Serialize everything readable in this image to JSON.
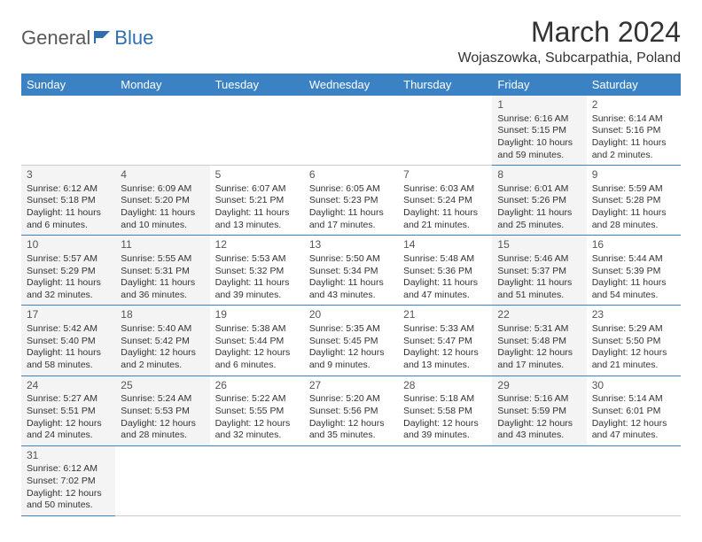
{
  "logo": {
    "word1": "General",
    "word2": "Blue"
  },
  "title": "March 2024",
  "location": "Wojaszowka, Subcarpathia, Poland",
  "colors": {
    "header_bg": "#3b82c4",
    "header_text": "#ffffff",
    "shaded_bg": "#f4f4f4",
    "row_border": "#3b82c4",
    "logo_gray": "#58595b",
    "logo_blue": "#2f6fae"
  },
  "weekdays": [
    "Sunday",
    "Monday",
    "Tuesday",
    "Wednesday",
    "Thursday",
    "Friday",
    "Saturday"
  ],
  "weeks": [
    [
      {
        "empty": true
      },
      {
        "empty": true
      },
      {
        "empty": true
      },
      {
        "empty": true
      },
      {
        "empty": true
      },
      {
        "num": "1",
        "shaded": true,
        "sunrise": "Sunrise: 6:16 AM",
        "sunset": "Sunset: 5:15 PM",
        "day1": "Daylight: 10 hours",
        "day2": "and 59 minutes."
      },
      {
        "num": "2",
        "shaded": false,
        "sunrise": "Sunrise: 6:14 AM",
        "sunset": "Sunset: 5:16 PM",
        "day1": "Daylight: 11 hours",
        "day2": "and 2 minutes."
      }
    ],
    [
      {
        "num": "3",
        "shaded": true,
        "sunrise": "Sunrise: 6:12 AM",
        "sunset": "Sunset: 5:18 PM",
        "day1": "Daylight: 11 hours",
        "day2": "and 6 minutes."
      },
      {
        "num": "4",
        "shaded": true,
        "sunrise": "Sunrise: 6:09 AM",
        "sunset": "Sunset: 5:20 PM",
        "day1": "Daylight: 11 hours",
        "day2": "and 10 minutes."
      },
      {
        "num": "5",
        "shaded": false,
        "sunrise": "Sunrise: 6:07 AM",
        "sunset": "Sunset: 5:21 PM",
        "day1": "Daylight: 11 hours",
        "day2": "and 13 minutes."
      },
      {
        "num": "6",
        "shaded": false,
        "sunrise": "Sunrise: 6:05 AM",
        "sunset": "Sunset: 5:23 PM",
        "day1": "Daylight: 11 hours",
        "day2": "and 17 minutes."
      },
      {
        "num": "7",
        "shaded": false,
        "sunrise": "Sunrise: 6:03 AM",
        "sunset": "Sunset: 5:24 PM",
        "day1": "Daylight: 11 hours",
        "day2": "and 21 minutes."
      },
      {
        "num": "8",
        "shaded": true,
        "sunrise": "Sunrise: 6:01 AM",
        "sunset": "Sunset: 5:26 PM",
        "day1": "Daylight: 11 hours",
        "day2": "and 25 minutes."
      },
      {
        "num": "9",
        "shaded": false,
        "sunrise": "Sunrise: 5:59 AM",
        "sunset": "Sunset: 5:28 PM",
        "day1": "Daylight: 11 hours",
        "day2": "and 28 minutes."
      }
    ],
    [
      {
        "num": "10",
        "shaded": true,
        "sunrise": "Sunrise: 5:57 AM",
        "sunset": "Sunset: 5:29 PM",
        "day1": "Daylight: 11 hours",
        "day2": "and 32 minutes."
      },
      {
        "num": "11",
        "shaded": true,
        "sunrise": "Sunrise: 5:55 AM",
        "sunset": "Sunset: 5:31 PM",
        "day1": "Daylight: 11 hours",
        "day2": "and 36 minutes."
      },
      {
        "num": "12",
        "shaded": false,
        "sunrise": "Sunrise: 5:53 AM",
        "sunset": "Sunset: 5:32 PM",
        "day1": "Daylight: 11 hours",
        "day2": "and 39 minutes."
      },
      {
        "num": "13",
        "shaded": false,
        "sunrise": "Sunrise: 5:50 AM",
        "sunset": "Sunset: 5:34 PM",
        "day1": "Daylight: 11 hours",
        "day2": "and 43 minutes."
      },
      {
        "num": "14",
        "shaded": false,
        "sunrise": "Sunrise: 5:48 AM",
        "sunset": "Sunset: 5:36 PM",
        "day1": "Daylight: 11 hours",
        "day2": "and 47 minutes."
      },
      {
        "num": "15",
        "shaded": true,
        "sunrise": "Sunrise: 5:46 AM",
        "sunset": "Sunset: 5:37 PM",
        "day1": "Daylight: 11 hours",
        "day2": "and 51 minutes."
      },
      {
        "num": "16",
        "shaded": false,
        "sunrise": "Sunrise: 5:44 AM",
        "sunset": "Sunset: 5:39 PM",
        "day1": "Daylight: 11 hours",
        "day2": "and 54 minutes."
      }
    ],
    [
      {
        "num": "17",
        "shaded": true,
        "sunrise": "Sunrise: 5:42 AM",
        "sunset": "Sunset: 5:40 PM",
        "day1": "Daylight: 11 hours",
        "day2": "and 58 minutes."
      },
      {
        "num": "18",
        "shaded": true,
        "sunrise": "Sunrise: 5:40 AM",
        "sunset": "Sunset: 5:42 PM",
        "day1": "Daylight: 12 hours",
        "day2": "and 2 minutes."
      },
      {
        "num": "19",
        "shaded": false,
        "sunrise": "Sunrise: 5:38 AM",
        "sunset": "Sunset: 5:44 PM",
        "day1": "Daylight: 12 hours",
        "day2": "and 6 minutes."
      },
      {
        "num": "20",
        "shaded": false,
        "sunrise": "Sunrise: 5:35 AM",
        "sunset": "Sunset: 5:45 PM",
        "day1": "Daylight: 12 hours",
        "day2": "and 9 minutes."
      },
      {
        "num": "21",
        "shaded": false,
        "sunrise": "Sunrise: 5:33 AM",
        "sunset": "Sunset: 5:47 PM",
        "day1": "Daylight: 12 hours",
        "day2": "and 13 minutes."
      },
      {
        "num": "22",
        "shaded": true,
        "sunrise": "Sunrise: 5:31 AM",
        "sunset": "Sunset: 5:48 PM",
        "day1": "Daylight: 12 hours",
        "day2": "and 17 minutes."
      },
      {
        "num": "23",
        "shaded": false,
        "sunrise": "Sunrise: 5:29 AM",
        "sunset": "Sunset: 5:50 PM",
        "day1": "Daylight: 12 hours",
        "day2": "and 21 minutes."
      }
    ],
    [
      {
        "num": "24",
        "shaded": true,
        "sunrise": "Sunrise: 5:27 AM",
        "sunset": "Sunset: 5:51 PM",
        "day1": "Daylight: 12 hours",
        "day2": "and 24 minutes."
      },
      {
        "num": "25",
        "shaded": true,
        "sunrise": "Sunrise: 5:24 AM",
        "sunset": "Sunset: 5:53 PM",
        "day1": "Daylight: 12 hours",
        "day2": "and 28 minutes."
      },
      {
        "num": "26",
        "shaded": false,
        "sunrise": "Sunrise: 5:22 AM",
        "sunset": "Sunset: 5:55 PM",
        "day1": "Daylight: 12 hours",
        "day2": "and 32 minutes."
      },
      {
        "num": "27",
        "shaded": false,
        "sunrise": "Sunrise: 5:20 AM",
        "sunset": "Sunset: 5:56 PM",
        "day1": "Daylight: 12 hours",
        "day2": "and 35 minutes."
      },
      {
        "num": "28",
        "shaded": false,
        "sunrise": "Sunrise: 5:18 AM",
        "sunset": "Sunset: 5:58 PM",
        "day1": "Daylight: 12 hours",
        "day2": "and 39 minutes."
      },
      {
        "num": "29",
        "shaded": true,
        "sunrise": "Sunrise: 5:16 AM",
        "sunset": "Sunset: 5:59 PM",
        "day1": "Daylight: 12 hours",
        "day2": "and 43 minutes."
      },
      {
        "num": "30",
        "shaded": false,
        "sunrise": "Sunrise: 5:14 AM",
        "sunset": "Sunset: 6:01 PM",
        "day1": "Daylight: 12 hours",
        "day2": "and 47 minutes."
      }
    ],
    [
      {
        "num": "31",
        "shaded": true,
        "sunrise": "Sunrise: 6:12 AM",
        "sunset": "Sunset: 7:02 PM",
        "day1": "Daylight: 12 hours",
        "day2": "and 50 minutes."
      },
      {
        "empty": true
      },
      {
        "empty": true
      },
      {
        "empty": true
      },
      {
        "empty": true
      },
      {
        "empty": true
      },
      {
        "empty": true
      }
    ]
  ]
}
